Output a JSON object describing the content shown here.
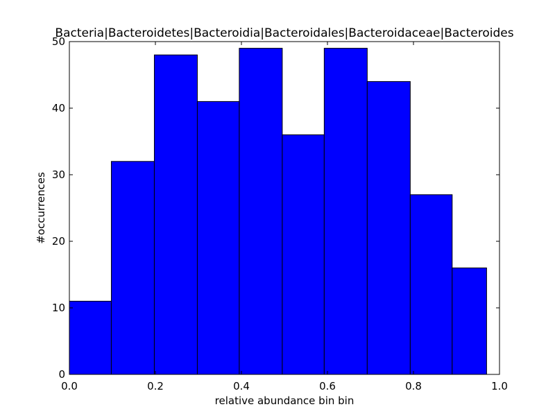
{
  "chart_data": {
    "type": "bar",
    "title": "Bacteria|Bacteroidetes|Bacteroidia|Bacteroidales|Bacteroidaceae|Bacteroides",
    "xlabel": "relative abundance bin bin",
    "ylabel": "#occurrences",
    "xlim": [
      0.0,
      1.0
    ],
    "ylim": [
      0,
      50
    ],
    "x_ticks": [
      "0.0",
      "0.2",
      "0.4",
      "0.6",
      "0.8",
      "1.0"
    ],
    "y_ticks": [
      "0",
      "10",
      "20",
      "30",
      "40",
      "50"
    ],
    "bin_edges": [
      0.0,
      0.0975,
      0.1975,
      0.2975,
      0.395,
      0.495,
      0.5925,
      0.6925,
      0.7925,
      0.89,
      0.97
    ],
    "values": [
      11,
      32,
      48,
      41,
      49,
      36,
      49,
      44,
      27,
      16
    ],
    "bar_color": "#0000ff",
    "edge_color": "#000000",
    "grid": false,
    "legend": "none"
  }
}
